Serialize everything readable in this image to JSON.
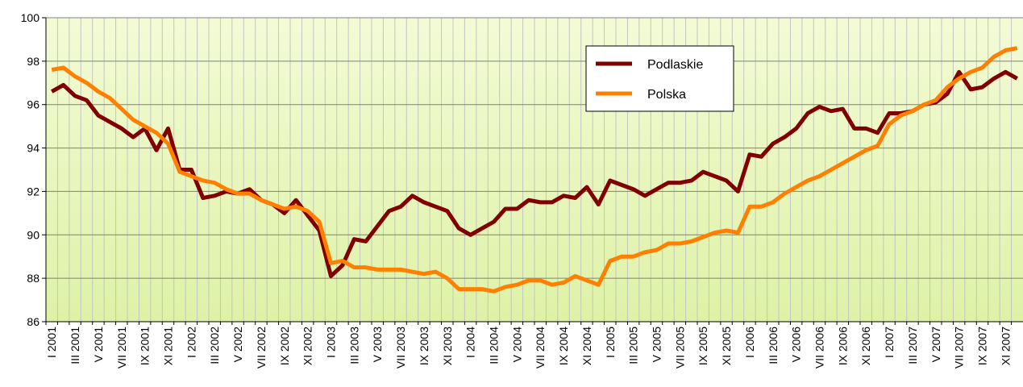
{
  "chart_data": {
    "type": "line",
    "categories": [
      "I 2001",
      null,
      "III 2001",
      null,
      "V 2001",
      null,
      "VII 2001",
      null,
      "IX 2001",
      null,
      "XI 2001",
      null,
      "I 2002",
      null,
      "III 2002",
      null,
      "V 2002",
      null,
      "VII 2002",
      null,
      "IX 2002",
      null,
      "XI 2002",
      null,
      "I 2003",
      null,
      "III 2003",
      null,
      "V 2003",
      null,
      "VII 2003",
      null,
      "IX 2003",
      null,
      "XI 2003",
      null,
      "I 2004",
      null,
      "III 2004",
      null,
      "V 2004",
      null,
      "VII 2004",
      null,
      "IX 2004",
      null,
      "XI 2004",
      null,
      "I 2005",
      null,
      "III 2005",
      null,
      "V 2005",
      null,
      "VII 2005",
      null,
      "IX 2005",
      null,
      "XI 2005",
      null,
      "I 2006",
      null,
      "III 2006",
      null,
      "V 2006",
      null,
      "VII 2006",
      null,
      "IX 2006",
      null,
      "XI 2006",
      null,
      "I 2007",
      null,
      "III 2007",
      null,
      "V 2007",
      null,
      "VII 2007",
      null,
      "IX 2007",
      null,
      "XI 2007",
      null
    ],
    "series": [
      {
        "name": "Podlaskie",
        "color": "#800000",
        "values": [
          96.6,
          96.9,
          96.4,
          96.2,
          95.5,
          95.2,
          94.9,
          94.5,
          94.9,
          93.9,
          94.9,
          93.0,
          93.0,
          91.7,
          91.8,
          92.0,
          91.9,
          92.1,
          91.6,
          91.4,
          91.0,
          91.6,
          90.9,
          90.2,
          88.1,
          88.6,
          89.8,
          89.7,
          90.4,
          91.1,
          91.3,
          91.8,
          91.5,
          91.3,
          91.1,
          90.3,
          90.0,
          90.3,
          90.6,
          91.2,
          91.2,
          91.6,
          91.5,
          91.5,
          91.8,
          91.7,
          92.2,
          91.4,
          92.5,
          92.3,
          92.1,
          91.8,
          92.1,
          92.4,
          92.4,
          92.5,
          92.9,
          92.7,
          92.5,
          92.0,
          93.7,
          93.6,
          94.2,
          94.5,
          94.9,
          95.6,
          95.9,
          95.7,
          95.8,
          94.9,
          94.9,
          94.7,
          95.6,
          95.6,
          95.7,
          96.0,
          96.1,
          96.5,
          97.5,
          96.7,
          96.8,
          97.2,
          97.5,
          97.2
        ]
      },
      {
        "name": "Polska",
        "color": "#ff8000",
        "values": [
          97.6,
          97.7,
          97.3,
          97.0,
          96.6,
          96.3,
          95.8,
          95.3,
          95.0,
          94.7,
          94.2,
          92.9,
          92.7,
          92.5,
          92.4,
          92.1,
          91.9,
          91.9,
          91.6,
          91.4,
          91.2,
          91.3,
          91.1,
          90.6,
          88.7,
          88.8,
          88.5,
          88.5,
          88.4,
          88.4,
          88.4,
          88.3,
          88.2,
          88.3,
          88.0,
          87.5,
          87.5,
          87.5,
          87.4,
          87.6,
          87.7,
          87.9,
          87.9,
          87.7,
          87.8,
          88.1,
          87.9,
          87.7,
          88.8,
          89.0,
          89.0,
          89.2,
          89.3,
          89.6,
          89.6,
          89.7,
          89.9,
          90.1,
          90.2,
          90.1,
          91.3,
          91.3,
          91.5,
          91.9,
          92.2,
          92.5,
          92.7,
          93.0,
          93.3,
          93.6,
          93.9,
          94.1,
          95.1,
          95.5,
          95.7,
          96.0,
          96.2,
          96.8,
          97.2,
          97.5,
          97.7,
          98.2,
          98.5,
          98.6
        ]
      }
    ],
    "ylim": [
      86,
      100
    ],
    "yticks": [
      86,
      88,
      90,
      92,
      94,
      96,
      98,
      100
    ],
    "grid": true,
    "legend": "upper right"
  }
}
